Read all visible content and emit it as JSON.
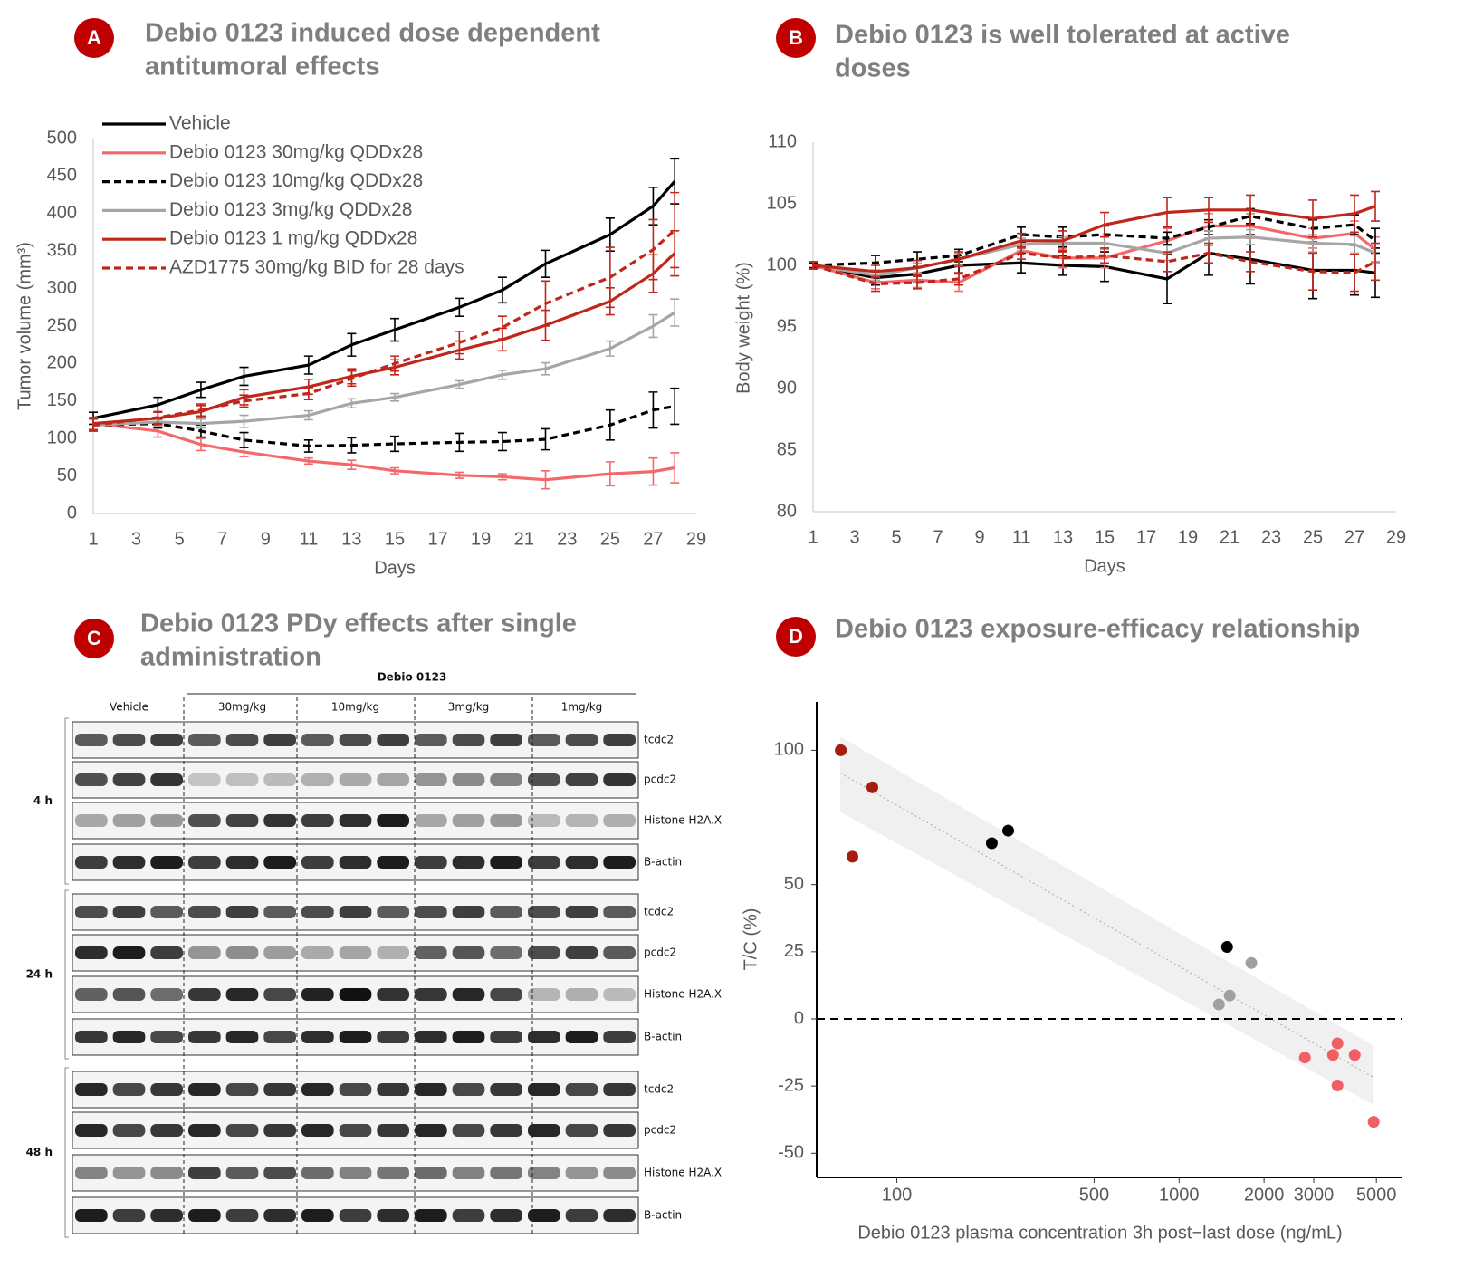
{
  "chart_data": [
    {
      "type": "line",
      "badge": "A",
      "title": [
        "Debio 0123 induced dose dependent",
        "antitumoral effects"
      ],
      "x_label": "Days",
      "y_label": "Tumor volume (mm³)",
      "x": [
        1,
        4,
        6,
        8,
        11,
        13,
        15,
        18,
        20,
        22,
        25,
        27,
        28
      ],
      "xlim": [
        1,
        29
      ],
      "xticks": [
        1,
        3,
        5,
        7,
        9,
        11,
        13,
        15,
        17,
        19,
        21,
        23,
        25,
        27,
        29
      ],
      "ylim": [
        0,
        500
      ],
      "yticks": [
        0,
        50,
        100,
        150,
        200,
        250,
        300,
        350,
        400,
        450,
        500
      ],
      "legend": "top-left",
      "series": [
        {
          "name": "Vehicle",
          "color": "#000000",
          "dashed": false,
          "values": [
            127,
            145,
            165,
            183,
            198,
            225,
            245,
            275,
            298,
            333,
            372,
            410,
            443
          ],
          "errors": [
            8,
            10,
            10,
            12,
            12,
            15,
            15,
            12,
            17,
            18,
            22,
            25,
            30
          ]
        },
        {
          "name": "Debio 0123 30mg/kg QDDx28",
          "color": "#f4686c",
          "dashed": false,
          "values": [
            120,
            110,
            92,
            82,
            70,
            65,
            57,
            51,
            49,
            45,
            53,
            56,
            61
          ],
          "errors": [
            8,
            8,
            8,
            6,
            4,
            6,
            4,
            4,
            4,
            12,
            16,
            18,
            20
          ]
        },
        {
          "name": "Debio 0123 10mg/kg QDDx28",
          "color": "#000000",
          "dashed": true,
          "values": [
            118,
            120,
            110,
            98,
            90,
            91,
            93,
            95,
            96,
            99,
            118,
            138,
            143
          ],
          "errors": [
            8,
            6,
            8,
            10,
            8,
            10,
            10,
            12,
            12,
            14,
            20,
            24,
            24
          ]
        },
        {
          "name": "Debio 0123 3mg/kg QDDx28",
          "color": "#a6a6a6",
          "dashed": false,
          "values": [
            118,
            122,
            120,
            123,
            131,
            147,
            155,
            172,
            185,
            193,
            220,
            250,
            268
          ],
          "errors": [
            8,
            6,
            6,
            8,
            6,
            6,
            5,
            5,
            6,
            8,
            10,
            15,
            18
          ]
        },
        {
          "name": "Debio 0123 1 mg/kg QDDx28",
          "color": "#c0271b",
          "dashed": false,
          "values": [
            120,
            127,
            136,
            155,
            169,
            183,
            195,
            218,
            232,
            251,
            283,
            320,
            347
          ],
          "errors": [
            8,
            8,
            8,
            10,
            10,
            10,
            10,
            12,
            15,
            20,
            18,
            25,
            30
          ]
        },
        {
          "name": "AZD1775 30mg/kg BID for 28 days",
          "color": "#c0271b",
          "dashed": true,
          "values": [
            118,
            128,
            138,
            150,
            160,
            180,
            200,
            228,
            248,
            280,
            315,
            352,
            378
          ],
          "errors": [
            8,
            8,
            8,
            8,
            8,
            10,
            10,
            15,
            15,
            30,
            40,
            40,
            50
          ]
        }
      ]
    },
    {
      "type": "line",
      "badge": "B",
      "title": [
        "Debio 0123 is well tolerated at active",
        "doses"
      ],
      "x_label": "Days",
      "y_label": "Body weight (%)",
      "x": [
        1,
        4,
        6,
        8,
        11,
        13,
        15,
        18,
        20,
        22,
        25,
        27,
        28
      ],
      "xlim": [
        1,
        29
      ],
      "xticks": [
        1,
        3,
        5,
        7,
        9,
        11,
        13,
        15,
        17,
        19,
        21,
        23,
        25,
        27,
        29
      ],
      "ylim": [
        80,
        110
      ],
      "yticks": [
        80,
        85,
        90,
        95,
        100,
        105,
        110
      ],
      "series": [
        {
          "color": "#000000",
          "dashed": false,
          "values": [
            100,
            99.0,
            99.3,
            100,
            100.2,
            100,
            99.9,
            98.9,
            101,
            100.5,
            99.6,
            99.6,
            99.4
          ],
          "errors": [
            0.2,
            0.6,
            0.6,
            0.6,
            0.8,
            0.8,
            1.2,
            2,
            1.8,
            2,
            2.3,
            2,
            2
          ]
        },
        {
          "color": "#f4686c",
          "dashed": false,
          "values": [
            100,
            98.6,
            98.8,
            98.6,
            101.2,
            100.6,
            100.6,
            102,
            103.2,
            103.2,
            102.2,
            102.6,
            101.3
          ],
          "errors": [
            0.3,
            0.5,
            0.6,
            0.7,
            0.7,
            0.8,
            0.8,
            1,
            1,
            1,
            0.8,
            1,
            1
          ]
        },
        {
          "color": "#000000",
          "dashed": true,
          "values": [
            100,
            100.2,
            100.5,
            100.8,
            102.5,
            102.3,
            102.5,
            102.2,
            103.1,
            104.0,
            103.0,
            103.3,
            102.0
          ],
          "errors": [
            0.2,
            0.6,
            0.6,
            0.5,
            0.6,
            0.8,
            0.7,
            0.5,
            0.6,
            0.6,
            0.7,
            0.8,
            1
          ]
        },
        {
          "color": "#a6a6a6",
          "dashed": false,
          "values": [
            100,
            99.2,
            99.8,
            100.5,
            101.7,
            101.8,
            101.8,
            101,
            102.2,
            102.3,
            101.8,
            101.7,
            101
          ],
          "errors": [
            0.3,
            0.4,
            0.4,
            0.5,
            0.5,
            0.5,
            0.5,
            0.6,
            0.6,
            0.6,
            0.7,
            0.7,
            0.8
          ]
        },
        {
          "color": "#c0271b",
          "dashed": false,
          "values": [
            100,
            99.5,
            99.8,
            100.5,
            102,
            102,
            103.3,
            104.3,
            104.5,
            104.5,
            103.8,
            104.2,
            104.8
          ],
          "errors": [
            0.3,
            0.5,
            0.6,
            0.6,
            0.6,
            0.8,
            1,
            1.2,
            1,
            1.2,
            1.5,
            1.5,
            1.2
          ]
        },
        {
          "color": "#c0271b",
          "dashed": true,
          "values": [
            100,
            98.5,
            98.6,
            98.9,
            101,
            100.6,
            100.8,
            100.3,
            101,
            100.3,
            99.5,
            99.4,
            100.3
          ],
          "errors": [
            0.3,
            0.6,
            0.5,
            0.5,
            0.5,
            0.5,
            0.6,
            0.8,
            0.8,
            0.8,
            1.5,
            1.5,
            1.5
          ]
        }
      ]
    },
    {
      "type": "scatter",
      "badge": "D",
      "title": [
        "Debio 0123 exposure-efficacy relationship"
      ],
      "x_label": "Debio 0123 plasma concentration 3h post−last dose (ng/mL)",
      "y_label": "T/C (%)",
      "xscale": "log",
      "xlim": [
        52,
        6140
      ],
      "xticks": [
        100,
        500,
        1000,
        2000,
        3000,
        5000
      ],
      "ylim": [
        -59,
        118
      ],
      "yticks": [
        -50,
        -25,
        0,
        25,
        50,
        100
      ],
      "hline": 0,
      "fit": {
        "x": [
          63,
          4890
        ],
        "y": [
          91.6,
          -21.8
        ],
        "lower": [
          77,
          -32
        ],
        "upper": [
          105,
          -10
        ]
      },
      "series": [
        {
          "color": "#a61c0e",
          "x": [
            63.3,
            81.9,
            69.6
          ],
          "values": [
            100,
            86.2,
            60.4
          ]
        },
        {
          "color": "#000000",
          "x": [
            217,
            248,
            1479
          ],
          "values": [
            65.4,
            70.1,
            26.8
          ]
        },
        {
          "color": "#a0a0a0",
          "x": [
            1384,
            1511,
            1803
          ],
          "values": [
            5.4,
            8.7,
            20.8
          ]
        },
        {
          "color": "#f05f63",
          "x": [
            2790,
            3510,
            3640,
            4190,
            3640,
            4890
          ],
          "values": [
            -14.4,
            -13.4,
            -9.1,
            -13.4,
            -24.8,
            -38.3
          ]
        }
      ]
    }
  ],
  "blot": {
    "badge": "C",
    "title": [
      "Debio 0123 PDy effects after single",
      "administration"
    ],
    "header": "Debio 0123",
    "groups": [
      "Vehicle",
      "30mg/kg",
      "10mg/kg",
      "3mg/kg",
      "1mg/kg"
    ],
    "timepoints": [
      "4 h",
      "24 h",
      "48 h"
    ],
    "rows": [
      "tcdc2",
      "pcdc2",
      "Histone H2A.X",
      "B-actin"
    ]
  }
}
